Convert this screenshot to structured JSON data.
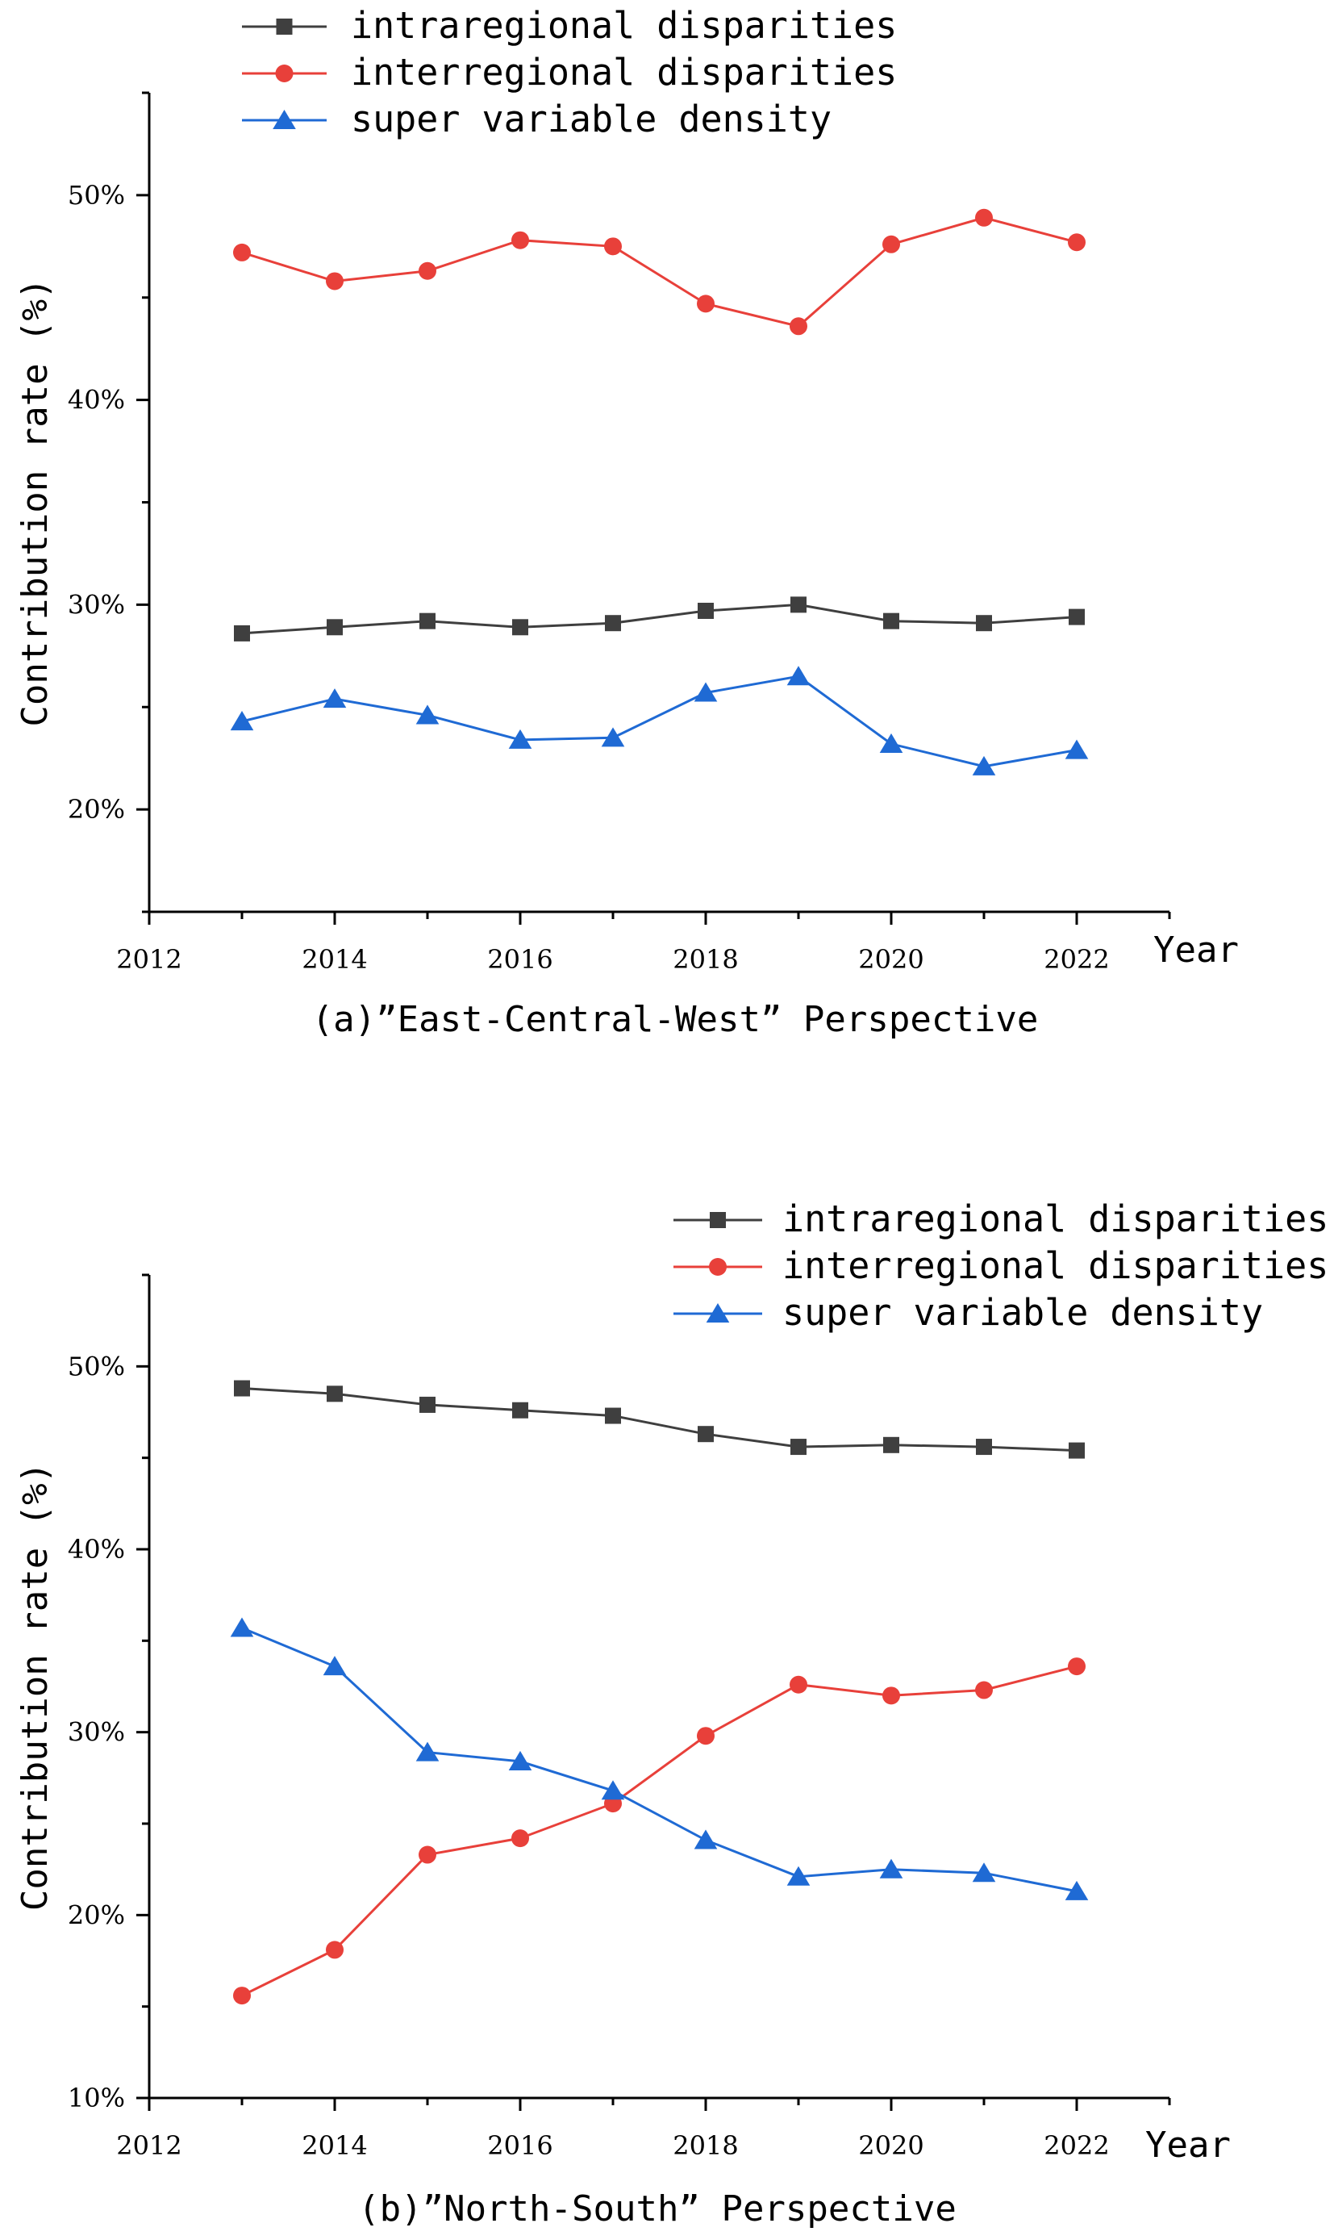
{
  "chart_data": [
    {
      "type": "line",
      "caption": "(a)”East-Central-West” Perspective",
      "xlabel": "Year",
      "ylabel": "Contribution rate (%)",
      "x": [
        2013,
        2014,
        2015,
        2016,
        2017,
        2018,
        2019,
        2020,
        2021,
        2022
      ],
      "xlim": [
        2012,
        2023
      ],
      "xticks": [
        2012,
        2014,
        2016,
        2018,
        2020,
        2022
      ],
      "ylim": [
        15,
        55
      ],
      "yticks": [
        20,
        30,
        40,
        50
      ],
      "ytick_labels": [
        "20%",
        "30%",
        "40%",
        "50%"
      ],
      "legend_position": "top-left",
      "series": [
        {
          "name": "intraregional disparities",
          "marker": "square",
          "color": "#3f3f3f",
          "values": [
            28.6,
            28.9,
            29.2,
            28.9,
            29.1,
            29.7,
            30.0,
            29.2,
            29.1,
            29.4
          ]
        },
        {
          "name": "interregional disparities",
          "marker": "circle",
          "color": "#e8403a",
          "values": [
            47.2,
            45.8,
            46.3,
            47.8,
            47.5,
            44.7,
            43.6,
            47.6,
            48.9,
            47.7
          ]
        },
        {
          "name": "super variable density",
          "marker": "triangle",
          "color": "#1f6ad4",
          "values": [
            24.3,
            25.4,
            24.6,
            23.4,
            23.5,
            25.7,
            26.5,
            23.2,
            22.1,
            22.9
          ]
        }
      ]
    },
    {
      "type": "line",
      "caption": "(b)”North-South” Perspective",
      "xlabel": "Year",
      "ylabel": "Contribution rate (%)",
      "x": [
        2013,
        2014,
        2015,
        2016,
        2017,
        2018,
        2019,
        2020,
        2021,
        2022
      ],
      "xlim": [
        2012,
        2023
      ],
      "xticks": [
        2012,
        2014,
        2016,
        2018,
        2020,
        2022
      ],
      "ylim": [
        10,
        55
      ],
      "yticks": [
        10,
        20,
        30,
        40,
        50
      ],
      "ytick_labels": [
        "10%",
        "20%",
        "30%",
        "40%",
        "50%"
      ],
      "legend_position": "top-right",
      "series": [
        {
          "name": "intraregional disparities",
          "marker": "square",
          "color": "#3f3f3f",
          "values": [
            48.8,
            48.5,
            47.9,
            47.6,
            47.3,
            46.3,
            45.6,
            45.7,
            45.6,
            45.4
          ]
        },
        {
          "name": "interregional disparities",
          "marker": "circle",
          "color": "#e8403a",
          "values": [
            15.6,
            18.1,
            23.3,
            24.2,
            26.1,
            29.8,
            32.6,
            32.0,
            32.3,
            33.6
          ]
        },
        {
          "name": "super variable density",
          "marker": "triangle",
          "color": "#1f6ad4",
          "values": [
            35.7,
            33.6,
            28.9,
            28.4,
            26.8,
            24.1,
            22.1,
            22.5,
            22.3,
            21.3
          ]
        }
      ]
    }
  ]
}
